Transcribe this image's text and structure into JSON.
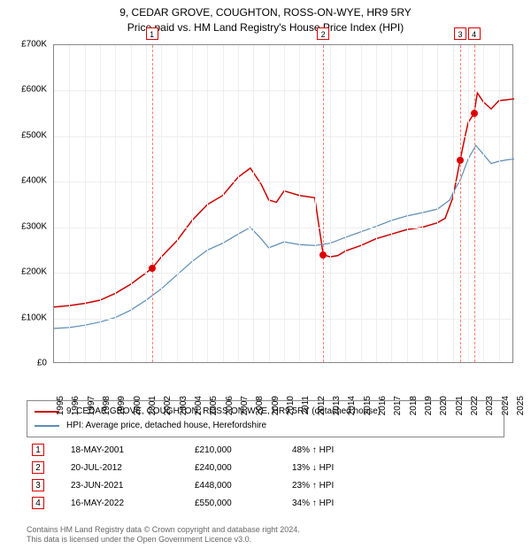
{
  "title_line1": "9, CEDAR GROVE, COUGHTON, ROSS-ON-WYE, HR9 5RY",
  "title_line2": "Price paid vs. HM Land Registry's House Price Index (HPI)",
  "chart": {
    "type": "line",
    "background_color": "#ffffff",
    "grid_color": "#eeeeee",
    "axis_color": "#888888",
    "marker_line_color": "#fa8072",
    "x_start": 1995,
    "x_end": 2025,
    "xtick_step": 1,
    "xticks": [
      1995,
      1996,
      1997,
      1998,
      1999,
      2000,
      2001,
      2002,
      2003,
      2004,
      2005,
      2006,
      2007,
      2008,
      2009,
      2010,
      2011,
      2012,
      2013,
      2014,
      2015,
      2016,
      2017,
      2018,
      2019,
      2020,
      2021,
      2022,
      2023,
      2024,
      2025
    ],
    "ylim": [
      0,
      700000
    ],
    "ytick_step": 100000,
    "yticks": [
      "£0",
      "£100K",
      "£200K",
      "£300K",
      "£400K",
      "£500K",
      "£600K",
      "£700K"
    ],
    "label_fontsize": 10,
    "series": [
      {
        "name": "property",
        "label": "9, CEDAR GROVE, COUGHTON, ROSS-ON-WYE, HR9 5RY (detached house)",
        "color": "#cc0000",
        "line_width": 1.5,
        "points": [
          [
            1995.0,
            125000
          ],
          [
            1996.0,
            128000
          ],
          [
            1997.0,
            133000
          ],
          [
            1998.0,
            140000
          ],
          [
            1999.0,
            155000
          ],
          [
            2000.0,
            175000
          ],
          [
            2001.0,
            200000
          ],
          [
            2001.4,
            210000
          ],
          [
            2002.0,
            235000
          ],
          [
            2003.0,
            270000
          ],
          [
            2004.0,
            315000
          ],
          [
            2005.0,
            350000
          ],
          [
            2006.0,
            370000
          ],
          [
            2007.0,
            410000
          ],
          [
            2007.8,
            430000
          ],
          [
            2008.5,
            395000
          ],
          [
            2009.0,
            360000
          ],
          [
            2009.5,
            355000
          ],
          [
            2010.0,
            380000
          ],
          [
            2011.0,
            370000
          ],
          [
            2012.0,
            365000
          ],
          [
            2012.55,
            240000
          ],
          [
            2013.0,
            235000
          ],
          [
            2013.5,
            238000
          ],
          [
            2014.0,
            248000
          ],
          [
            2015.0,
            260000
          ],
          [
            2016.0,
            275000
          ],
          [
            2017.0,
            285000
          ],
          [
            2018.0,
            295000
          ],
          [
            2019.0,
            300000
          ],
          [
            2020.0,
            310000
          ],
          [
            2020.5,
            320000
          ],
          [
            2021.0,
            365000
          ],
          [
            2021.48,
            448000
          ],
          [
            2021.8,
            500000
          ],
          [
            2022.0,
            530000
          ],
          [
            2022.38,
            550000
          ],
          [
            2022.6,
            595000
          ],
          [
            2023.0,
            575000
          ],
          [
            2023.5,
            560000
          ],
          [
            2024.0,
            578000
          ],
          [
            2024.5,
            580000
          ],
          [
            2025.0,
            582000
          ]
        ]
      },
      {
        "name": "hpi",
        "label": "HPI: Average price, detached house, Herefordshire",
        "color": "#5b8db8",
        "line_width": 1.2,
        "points": [
          [
            1995.0,
            78000
          ],
          [
            1996.0,
            80000
          ],
          [
            1997.0,
            85000
          ],
          [
            1998.0,
            92000
          ],
          [
            1999.0,
            102000
          ],
          [
            2000.0,
            118000
          ],
          [
            2001.0,
            140000
          ],
          [
            2002.0,
            165000
          ],
          [
            2003.0,
            195000
          ],
          [
            2004.0,
            225000
          ],
          [
            2005.0,
            250000
          ],
          [
            2006.0,
            265000
          ],
          [
            2007.0,
            285000
          ],
          [
            2007.8,
            300000
          ],
          [
            2008.5,
            275000
          ],
          [
            2009.0,
            255000
          ],
          [
            2010.0,
            268000
          ],
          [
            2011.0,
            262000
          ],
          [
            2012.0,
            260000
          ],
          [
            2013.0,
            265000
          ],
          [
            2014.0,
            278000
          ],
          [
            2015.0,
            290000
          ],
          [
            2016.0,
            302000
          ],
          [
            2017.0,
            315000
          ],
          [
            2018.0,
            325000
          ],
          [
            2019.0,
            332000
          ],
          [
            2020.0,
            340000
          ],
          [
            2020.8,
            360000
          ],
          [
            2021.0,
            375000
          ],
          [
            2021.5,
            405000
          ],
          [
            2022.0,
            450000
          ],
          [
            2022.5,
            480000
          ],
          [
            2023.0,
            460000
          ],
          [
            2023.5,
            440000
          ],
          [
            2024.0,
            445000
          ],
          [
            2024.5,
            448000
          ],
          [
            2025.0,
            450000
          ]
        ]
      }
    ],
    "sale_markers": [
      {
        "idx": "1",
        "x": 2001.38,
        "y": 210000
      },
      {
        "idx": "2",
        "x": 2012.55,
        "y": 240000
      },
      {
        "idx": "3",
        "x": 2021.48,
        "y": 448000
      },
      {
        "idx": "4",
        "x": 2022.38,
        "y": 550000
      }
    ],
    "dot_color": "#cc0000",
    "marker_box_border": "#cc0000"
  },
  "legend": {
    "border_color": "#888888",
    "items": [
      {
        "color": "#cc0000",
        "label": "9, CEDAR GROVE, COUGHTON, ROSS-ON-WYE, HR9 5RY (detached house)"
      },
      {
        "color": "#5b8db8",
        "label": "HPI: Average price, detached house, Herefordshire"
      }
    ]
  },
  "sales": [
    {
      "idx": "1",
      "date": "18-MAY-2001",
      "price": "£210,000",
      "pct": "48% ↑ HPI"
    },
    {
      "idx": "2",
      "date": "20-JUL-2012",
      "price": "£240,000",
      "pct": "13% ↓ HPI"
    },
    {
      "idx": "3",
      "date": "23-JUN-2021",
      "price": "£448,000",
      "pct": "23% ↑ HPI"
    },
    {
      "idx": "4",
      "date": "16-MAY-2022",
      "price": "£550,000",
      "pct": "34% ↑ HPI"
    }
  ],
  "footer_line1": "Contains HM Land Registry data © Crown copyright and database right 2024.",
  "footer_line2": "This data is licensed under the Open Government Licence v3.0."
}
